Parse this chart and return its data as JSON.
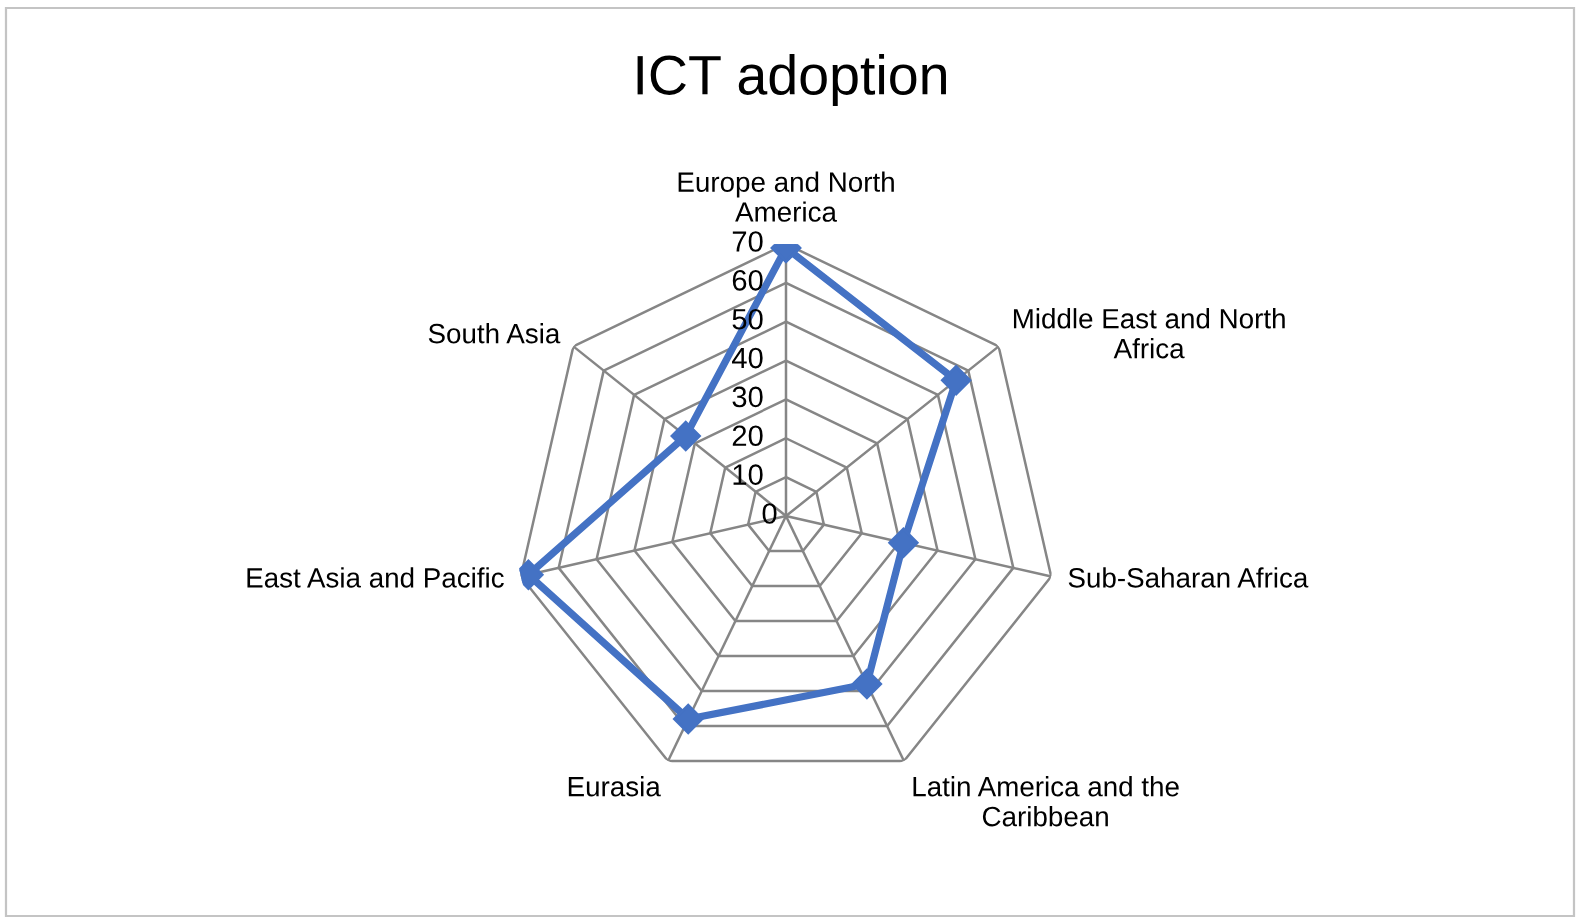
{
  "chart_data": {
    "type": "radar",
    "title": "ICT adoption",
    "categories": [
      "Europe and North America",
      "Middle East and North Africa",
      "Sub-Saharan Africa",
      "Latin America and the Caribbean",
      "Eurasia",
      "East Asia and Pacific",
      "South Asia"
    ],
    "series": [
      {
        "color": "#4472c4",
        "values": [
          69,
          56,
          31,
          48,
          58,
          68,
          33
        ]
      }
    ],
    "ylim": [
      0,
      70
    ],
    "yticks": [
      0,
      10,
      20,
      30,
      40,
      50,
      60,
      70
    ],
    "grid": true,
    "marker": "diamond",
    "line_style": "solid"
  }
}
